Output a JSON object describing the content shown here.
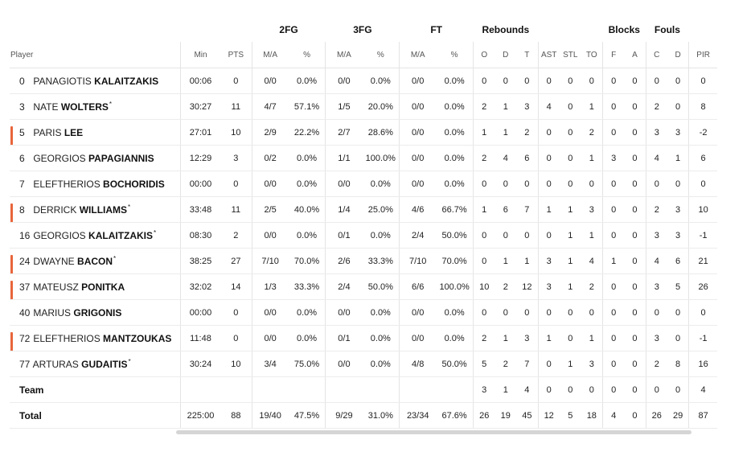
{
  "groups": {
    "fg2": "2FG",
    "fg3": "3FG",
    "ft": "FT",
    "rebounds": "Rebounds",
    "blocks": "Blocks",
    "fouls": "Fouls"
  },
  "columns": {
    "player": "Player",
    "min": "Min",
    "pts": "PTS",
    "fg2_ma": "M/A",
    "fg2_pct": "%",
    "fg3_ma": "M/A",
    "fg3_pct": "%",
    "ft_ma": "M/A",
    "ft_pct": "%",
    "reb_o": "O",
    "reb_d": "D",
    "reb_t": "T",
    "ast": "AST",
    "stl": "STL",
    "to": "TO",
    "blk_f": "F",
    "blk_a": "A",
    "foul_c": "C",
    "foul_d": "D",
    "pir": "PIR"
  },
  "accent_color": "#e8663c",
  "rows": [
    {
      "num": "0",
      "first": "PANAGIOTIS",
      "last": "KALAITZAKIS",
      "star": "",
      "marked": false,
      "min": "00:06",
      "pts": "0",
      "fg2_ma": "0/0",
      "fg2_pct": "0.0%",
      "fg3_ma": "0/0",
      "fg3_pct": "0.0%",
      "ft_ma": "0/0",
      "ft_pct": "0.0%",
      "reb_o": "0",
      "reb_d": "0",
      "reb_t": "0",
      "ast": "0",
      "stl": "0",
      "to": "0",
      "blk_f": "0",
      "blk_a": "0",
      "foul_c": "0",
      "foul_d": "0",
      "pir": "0"
    },
    {
      "num": "3",
      "first": "NATE",
      "last": "WOLTERS",
      "star": "*",
      "marked": false,
      "min": "30:27",
      "pts": "11",
      "fg2_ma": "4/7",
      "fg2_pct": "57.1%",
      "fg3_ma": "1/5",
      "fg3_pct": "20.0%",
      "ft_ma": "0/0",
      "ft_pct": "0.0%",
      "reb_o": "2",
      "reb_d": "1",
      "reb_t": "3",
      "ast": "4",
      "stl": "0",
      "to": "1",
      "blk_f": "0",
      "blk_a": "0",
      "foul_c": "2",
      "foul_d": "0",
      "pir": "8"
    },
    {
      "num": "5",
      "first": "PARIS",
      "last": "LEE",
      "star": "",
      "marked": true,
      "min": "27:01",
      "pts": "10",
      "fg2_ma": "2/9",
      "fg2_pct": "22.2%",
      "fg3_ma": "2/7",
      "fg3_pct": "28.6%",
      "ft_ma": "0/0",
      "ft_pct": "0.0%",
      "reb_o": "1",
      "reb_d": "1",
      "reb_t": "2",
      "ast": "0",
      "stl": "0",
      "to": "2",
      "blk_f": "0",
      "blk_a": "0",
      "foul_c": "3",
      "foul_d": "3",
      "pir": "-2"
    },
    {
      "num": "6",
      "first": "GEORGIOS",
      "last": "PAPAGIANNIS",
      "star": "",
      "marked": false,
      "min": "12:29",
      "pts": "3",
      "fg2_ma": "0/2",
      "fg2_pct": "0.0%",
      "fg3_ma": "1/1",
      "fg3_pct": "100.0%",
      "ft_ma": "0/0",
      "ft_pct": "0.0%",
      "reb_o": "2",
      "reb_d": "4",
      "reb_t": "6",
      "ast": "0",
      "stl": "0",
      "to": "1",
      "blk_f": "3",
      "blk_a": "0",
      "foul_c": "4",
      "foul_d": "1",
      "pir": "6"
    },
    {
      "num": "7",
      "first": "ELEFTHERIOS",
      "last": "BOCHORIDIS",
      "star": "",
      "marked": false,
      "min": "00:00",
      "pts": "0",
      "fg2_ma": "0/0",
      "fg2_pct": "0.0%",
      "fg3_ma": "0/0",
      "fg3_pct": "0.0%",
      "ft_ma": "0/0",
      "ft_pct": "0.0%",
      "reb_o": "0",
      "reb_d": "0",
      "reb_t": "0",
      "ast": "0",
      "stl": "0",
      "to": "0",
      "blk_f": "0",
      "blk_a": "0",
      "foul_c": "0",
      "foul_d": "0",
      "pir": "0"
    },
    {
      "num": "8",
      "first": "DERRICK",
      "last": "WILLIAMS",
      "star": "*",
      "marked": true,
      "min": "33:48",
      "pts": "11",
      "fg2_ma": "2/5",
      "fg2_pct": "40.0%",
      "fg3_ma": "1/4",
      "fg3_pct": "25.0%",
      "ft_ma": "4/6",
      "ft_pct": "66.7%",
      "reb_o": "1",
      "reb_d": "6",
      "reb_t": "7",
      "ast": "1",
      "stl": "1",
      "to": "3",
      "blk_f": "0",
      "blk_a": "0",
      "foul_c": "2",
      "foul_d": "3",
      "pir": "10"
    },
    {
      "num": "16",
      "first": "GEORGIOS",
      "last": "KALAITZAKIS",
      "star": "*",
      "marked": false,
      "min": "08:30",
      "pts": "2",
      "fg2_ma": "0/0",
      "fg2_pct": "0.0%",
      "fg3_ma": "0/1",
      "fg3_pct": "0.0%",
      "ft_ma": "2/4",
      "ft_pct": "50.0%",
      "reb_o": "0",
      "reb_d": "0",
      "reb_t": "0",
      "ast": "0",
      "stl": "1",
      "to": "1",
      "blk_f": "0",
      "blk_a": "0",
      "foul_c": "3",
      "foul_d": "3",
      "pir": "-1"
    },
    {
      "num": "24",
      "first": "DWAYNE",
      "last": "BACON",
      "star": "*",
      "marked": true,
      "min": "38:25",
      "pts": "27",
      "fg2_ma": "7/10",
      "fg2_pct": "70.0%",
      "fg3_ma": "2/6",
      "fg3_pct": "33.3%",
      "ft_ma": "7/10",
      "ft_pct": "70.0%",
      "reb_o": "0",
      "reb_d": "1",
      "reb_t": "1",
      "ast": "3",
      "stl": "1",
      "to": "4",
      "blk_f": "1",
      "blk_a": "0",
      "foul_c": "4",
      "foul_d": "6",
      "pir": "21"
    },
    {
      "num": "37",
      "first": "MATEUSZ",
      "last": "PONITKA",
      "star": "",
      "marked": true,
      "min": "32:02",
      "pts": "14",
      "fg2_ma": "1/3",
      "fg2_pct": "33.3%",
      "fg3_ma": "2/4",
      "fg3_pct": "50.0%",
      "ft_ma": "6/6",
      "ft_pct": "100.0%",
      "reb_o": "10",
      "reb_d": "2",
      "reb_t": "12",
      "ast": "3",
      "stl": "1",
      "to": "2",
      "blk_f": "0",
      "blk_a": "0",
      "foul_c": "3",
      "foul_d": "5",
      "pir": "26"
    },
    {
      "num": "40",
      "first": "MARIUS",
      "last": "GRIGONIS",
      "star": "",
      "marked": false,
      "min": "00:00",
      "pts": "0",
      "fg2_ma": "0/0",
      "fg2_pct": "0.0%",
      "fg3_ma": "0/0",
      "fg3_pct": "0.0%",
      "ft_ma": "0/0",
      "ft_pct": "0.0%",
      "reb_o": "0",
      "reb_d": "0",
      "reb_t": "0",
      "ast": "0",
      "stl": "0",
      "to": "0",
      "blk_f": "0",
      "blk_a": "0",
      "foul_c": "0",
      "foul_d": "0",
      "pir": "0"
    },
    {
      "num": "72",
      "first": "ELEFTHERIOS",
      "last": "MANTZOUKAS",
      "star": "",
      "marked": true,
      "min": "11:48",
      "pts": "0",
      "fg2_ma": "0/0",
      "fg2_pct": "0.0%",
      "fg3_ma": "0/1",
      "fg3_pct": "0.0%",
      "ft_ma": "0/0",
      "ft_pct": "0.0%",
      "reb_o": "2",
      "reb_d": "1",
      "reb_t": "3",
      "ast": "1",
      "stl": "0",
      "to": "1",
      "blk_f": "0",
      "blk_a": "0",
      "foul_c": "3",
      "foul_d": "0",
      "pir": "-1"
    },
    {
      "num": "77",
      "first": "ARTURAS",
      "last": "GUDAITIS",
      "star": "*",
      "marked": false,
      "min": "30:24",
      "pts": "10",
      "fg2_ma": "3/4",
      "fg2_pct": "75.0%",
      "fg3_ma": "0/0",
      "fg3_pct": "0.0%",
      "ft_ma": "4/8",
      "ft_pct": "50.0%",
      "reb_o": "5",
      "reb_d": "2",
      "reb_t": "7",
      "ast": "0",
      "stl": "1",
      "to": "3",
      "blk_f": "0",
      "blk_a": "0",
      "foul_c": "2",
      "foul_d": "8",
      "pir": "16"
    }
  ],
  "team": {
    "label": "Team",
    "min": "",
    "pts": "",
    "fg2_ma": "",
    "fg2_pct": "",
    "fg3_ma": "",
    "fg3_pct": "",
    "ft_ma": "",
    "ft_pct": "",
    "reb_o": "3",
    "reb_d": "1",
    "reb_t": "4",
    "ast": "0",
    "stl": "0",
    "to": "0",
    "blk_f": "0",
    "blk_a": "0",
    "foul_c": "0",
    "foul_d": "0",
    "pir": "4"
  },
  "total": {
    "label": "Total",
    "min": "225:00",
    "pts": "88",
    "fg2_ma": "19/40",
    "fg2_pct": "47.5%",
    "fg3_ma": "9/29",
    "fg3_pct": "31.0%",
    "ft_ma": "23/34",
    "ft_pct": "67.6%",
    "reb_o": "26",
    "reb_d": "19",
    "reb_t": "45",
    "ast": "12",
    "stl": "5",
    "to": "18",
    "blk_f": "4",
    "blk_a": "0",
    "foul_c": "26",
    "foul_d": "29",
    "pir": "87"
  }
}
